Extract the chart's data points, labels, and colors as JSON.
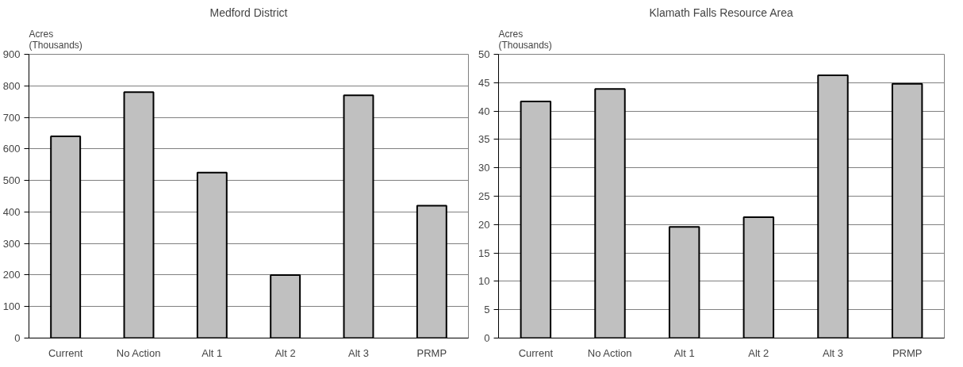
{
  "chart_data": [
    {
      "type": "bar",
      "title": "Medford District",
      "ylabel": "Acres\n(Thousands)",
      "categories": [
        "Current",
        "No Action",
        "Alt 1",
        "Alt 2",
        "Alt 3",
        "PRMP"
      ],
      "values": [
        640,
        780,
        525,
        200,
        770,
        420
      ],
      "color": "#c0c0c0",
      "ylim": [
        0,
        900
      ],
      "yticks": [
        0,
        100,
        200,
        300,
        400,
        500,
        600,
        700,
        800,
        900
      ],
      "grid": "y"
    },
    {
      "type": "bar",
      "title": "Klamath Falls Resource Area",
      "ylabel": "Acres\n(Thousands)",
      "categories": [
        "Current",
        "No Action",
        "Alt 1",
        "Alt 2",
        "Alt 3",
        "PRMP"
      ],
      "values": [
        41.7,
        43.9,
        19.6,
        21.3,
        46.3,
        44.8
      ],
      "color": "#c0c0c0",
      "ylim": [
        0,
        50
      ],
      "yticks": [
        0,
        5,
        10,
        15,
        20,
        25,
        30,
        35,
        40,
        45,
        50
      ],
      "grid": "y"
    }
  ]
}
